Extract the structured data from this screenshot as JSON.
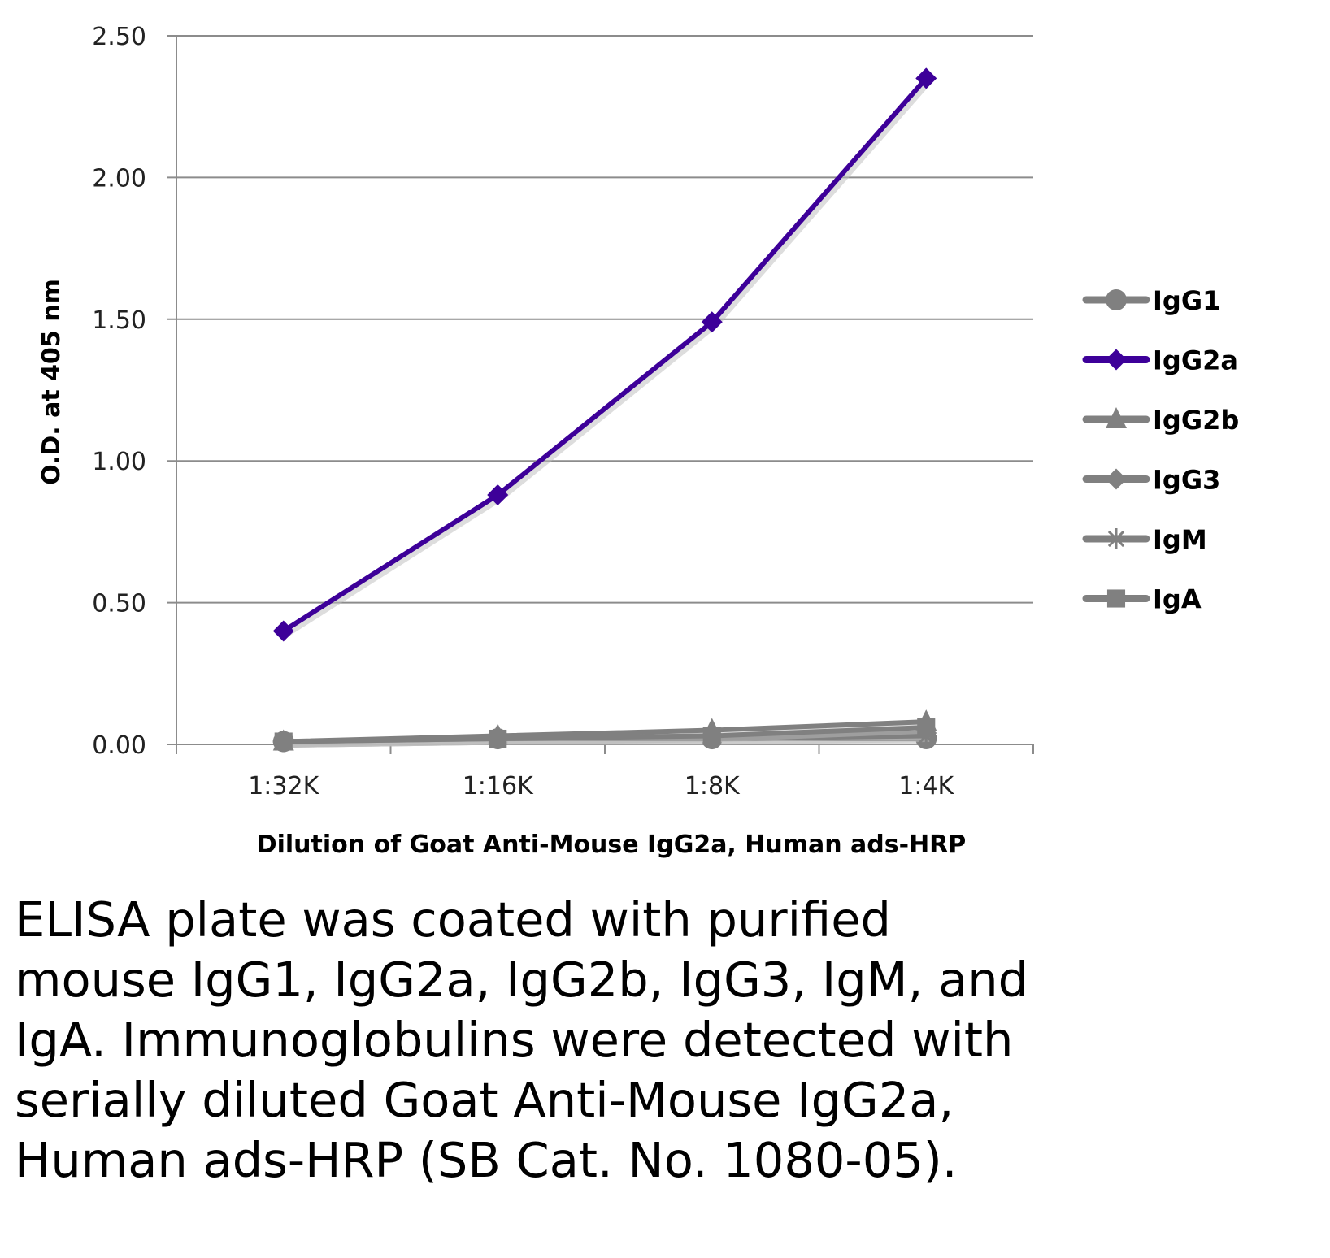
{
  "chart_data": {
    "type": "line",
    "title": "",
    "xlabel": "Dilution of Goat Anti-Mouse IgG2a, Human ads-HRP",
    "ylabel": "O.D. at 405 nm",
    "categories": [
      "1:32K",
      "1:16K",
      "1:8K",
      "1:4K"
    ],
    "ylim": [
      0,
      2.5
    ],
    "yticks": [
      "0.00",
      "0.50",
      "1.00",
      "1.50",
      "2.00",
      "2.50"
    ],
    "ytick_values": [
      0,
      0.5,
      1.0,
      1.5,
      2.0,
      2.5
    ],
    "grid": true,
    "legend_position": "right",
    "series": [
      {
        "name": "IgG1",
        "marker": "circle",
        "color": "#808080",
        "values": [
          0.01,
          0.02,
          0.02,
          0.02
        ]
      },
      {
        "name": "IgG2a",
        "marker": "diamond",
        "color": "#3d0099",
        "values": [
          0.4,
          0.88,
          1.49,
          2.35
        ]
      },
      {
        "name": "IgG2b",
        "marker": "triangle",
        "color": "#808080",
        "values": [
          0.01,
          0.03,
          0.05,
          0.08
        ]
      },
      {
        "name": "IgG3",
        "marker": "diamond",
        "color": "#808080",
        "values": [
          0.01,
          0.02,
          0.03,
          0.04
        ]
      },
      {
        "name": "IgM",
        "marker": "star",
        "color": "#808080",
        "values": [
          0.01,
          0.02,
          0.02,
          0.03
        ]
      },
      {
        "name": "IgA",
        "marker": "square",
        "color": "#808080",
        "values": [
          0.01,
          0.02,
          0.03,
          0.06
        ]
      }
    ]
  },
  "caption": [
    "ELISA plate was coated with purified",
    "mouse IgG1, IgG2a, IgG2b, IgG3, IgM, and",
    "IgA.  Immunoglobulins were detected with",
    "serially diluted Goat Anti-Mouse IgG2a,",
    "Human ads-HRP (SB Cat. No. 1080-05)."
  ]
}
